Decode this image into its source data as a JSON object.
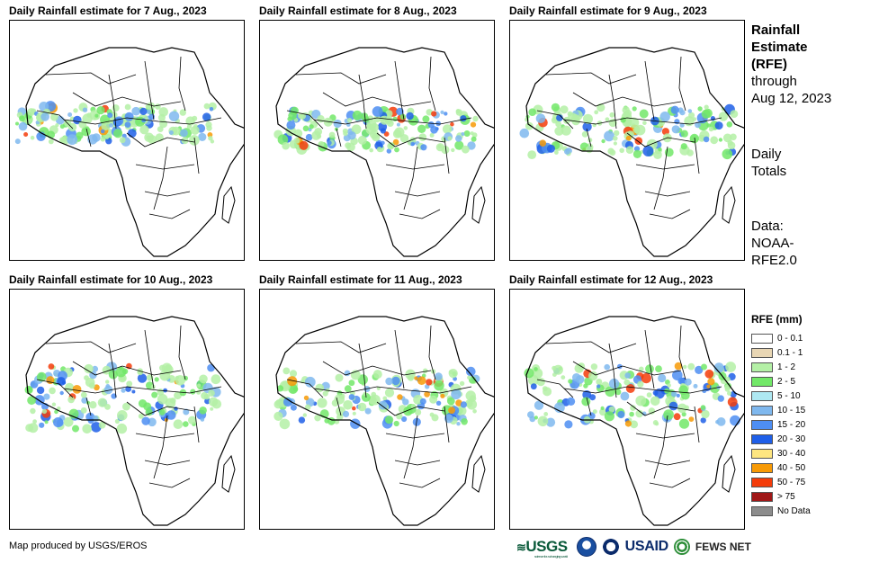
{
  "panels": [
    {
      "title": "Daily Rainfall estimate for 7 Aug., 2023"
    },
    {
      "title": "Daily Rainfall estimate for 8 Aug., 2023"
    },
    {
      "title": "Daily Rainfall estimate for 9 Aug., 2023"
    },
    {
      "title": "Daily Rainfall estimate for 10 Aug., 2023"
    },
    {
      "title": "Daily Rainfall estimate for 11 Aug., 2023"
    },
    {
      "title": "Daily Rainfall estimate for 12 Aug., 2023"
    }
  ],
  "side": {
    "title_line1": "Rainfall",
    "title_line2": "Estimate",
    "title_line3": "(RFE)",
    "through": "through",
    "date": "Aug 12, 2023",
    "totals_line1": "Daily",
    "totals_line2": "Totals",
    "data_line1": "Data:",
    "data_line2": "NOAA-",
    "data_line3": "RFE2.0"
  },
  "legend": {
    "title": "RFE (mm)",
    "items": [
      {
        "label": "0 - 0.1",
        "color": "#ffffff"
      },
      {
        "label": "0.1 - 1",
        "color": "#e8d6b4"
      },
      {
        "label": "1 - 2",
        "color": "#b4f0a6"
      },
      {
        "label": "2 - 5",
        "color": "#72e868"
      },
      {
        "label": "5 - 10",
        "color": "#aee8f2"
      },
      {
        "label": "10 - 15",
        "color": "#7fb8ee"
      },
      {
        "label": "15 - 20",
        "color": "#4e8ef2"
      },
      {
        "label": "20 - 30",
        "color": "#1f5fe8"
      },
      {
        "label": "30 - 40",
        "color": "#fee680"
      },
      {
        "label": "40 - 50",
        "color": "#f79a06"
      },
      {
        "label": "50 - 75",
        "color": "#f43c0a"
      },
      {
        "label": "> 75",
        "color": "#a01818"
      },
      {
        "label": "No Data",
        "color": "#8c8c8c"
      }
    ]
  },
  "footer": {
    "credit": "Map produced by USGS/EROS"
  },
  "logos": {
    "usgs": "USGS",
    "usgs_tagline": "science for a changing world",
    "usaid": "USAID",
    "fews": "FEWS NET"
  }
}
